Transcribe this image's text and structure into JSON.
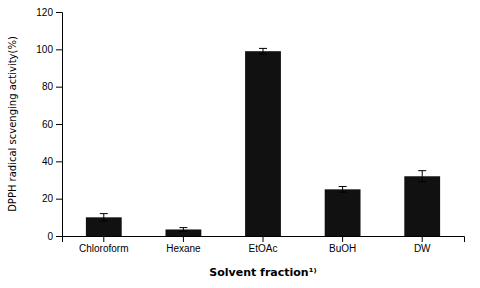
{
  "chart_data": {
    "type": "bar",
    "categories": [
      "Chloroform",
      "Hexane",
      "EtOAc",
      "BuOH",
      "DW"
    ],
    "values": [
      10.0,
      3.5,
      99.0,
      25.0,
      32.0
    ],
    "errors": [
      2.0,
      1.0,
      1.5,
      1.5,
      3.0
    ],
    "color": "#111111",
    "ylabel": "DPPH radical scvenging activity(%)",
    "xlabel": "Solvent fraction¹⁾",
    "ylim": [
      0,
      120
    ],
    "yticks": [
      0,
      20,
      40,
      60,
      80,
      100,
      120
    ],
    "grid": false
  }
}
